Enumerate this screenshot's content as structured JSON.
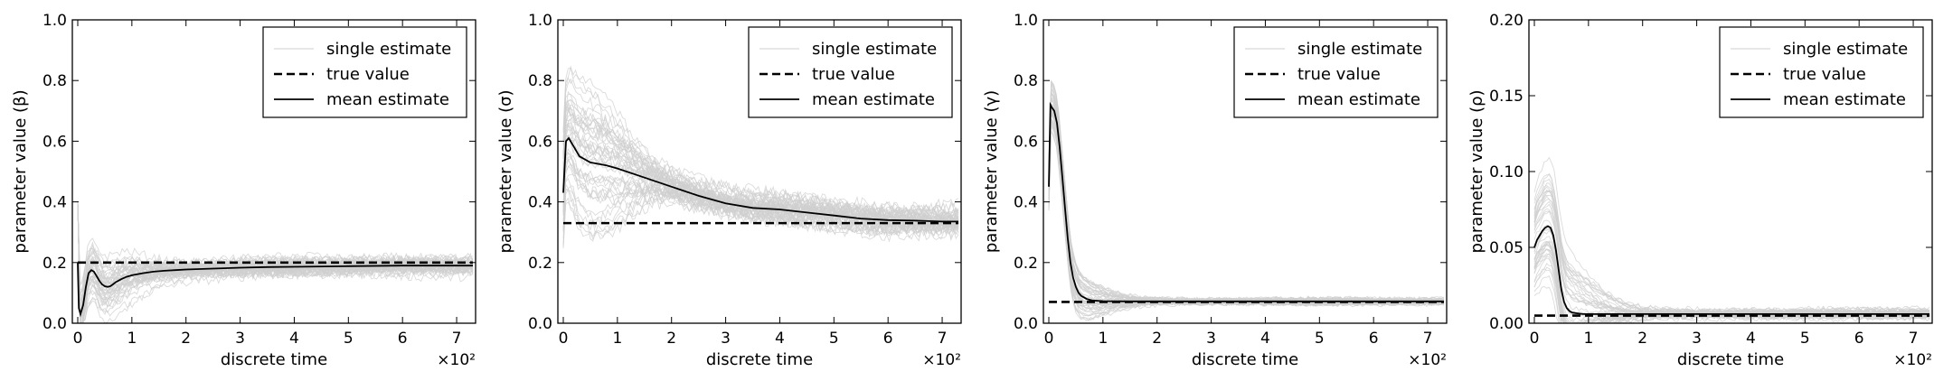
{
  "chart_data": [
    {
      "type": "line",
      "ylabel": "parameter value (β)",
      "xlabel": "discrete time",
      "x_multiplier": "×10²",
      "xlim": [
        -0.1,
        7.35
      ],
      "ylim": [
        0.0,
        1.0
      ],
      "xticks": [
        "0",
        "1",
        "2",
        "3",
        "4",
        "5",
        "6",
        "7"
      ],
      "yticks": [
        "0.0",
        "0.2",
        "0.4",
        "0.6",
        "0.8",
        "1.0"
      ],
      "legend": [
        "single estimate",
        "true value",
        "mean estimate"
      ],
      "legend_position": "top-right",
      "true_value": 0.2,
      "mean_x": [
        0,
        0.02,
        0.05,
        0.1,
        0.15,
        0.2,
        0.25,
        0.3,
        0.35,
        0.4,
        0.45,
        0.5,
        0.55,
        0.6,
        0.65,
        0.7,
        0.8,
        0.9,
        1.0,
        1.2,
        1.4,
        1.6,
        1.8,
        2.0,
        2.5,
        3.0,
        3.5,
        4.0,
        5.0,
        6.0,
        7.0,
        7.3
      ],
      "mean_y": [
        0.2,
        0.05,
        0.03,
        0.06,
        0.12,
        0.165,
        0.175,
        0.17,
        0.155,
        0.14,
        0.128,
        0.122,
        0.12,
        0.122,
        0.128,
        0.135,
        0.145,
        0.153,
        0.158,
        0.165,
        0.17,
        0.173,
        0.175,
        0.177,
        0.18,
        0.183,
        0.185,
        0.186,
        0.188,
        0.19,
        0.19,
        0.19
      ],
      "band": {
        "spike_y": 0.4,
        "spike_x": 0.0,
        "peak_x": 0.4,
        "peak_spread": 0.13,
        "end_spread": 0.03,
        "wavy": 0.015
      }
    },
    {
      "type": "line",
      "ylabel": "parameter value (σ)",
      "xlabel": "discrete time",
      "x_multiplier": "×10²",
      "xlim": [
        -0.1,
        7.35
      ],
      "ylim": [
        0.0,
        1.0
      ],
      "xticks": [
        "0",
        "1",
        "2",
        "3",
        "4",
        "5",
        "6",
        "7"
      ],
      "yticks": [
        "0.0",
        "0.2",
        "0.4",
        "0.6",
        "0.8",
        "1.0"
      ],
      "legend": [
        "single estimate",
        "true value",
        "mean estimate"
      ],
      "legend_position": "top-right",
      "true_value": 0.33,
      "mean_x": [
        0,
        0.05,
        0.1,
        0.2,
        0.3,
        0.5,
        0.8,
        1.0,
        1.5,
        2.0,
        2.5,
        3.0,
        3.5,
        4.0,
        4.5,
        5.0,
        5.5,
        6.0,
        6.5,
        7.0,
        7.3
      ],
      "mean_y": [
        0.43,
        0.6,
        0.61,
        0.58,
        0.55,
        0.53,
        0.52,
        0.51,
        0.48,
        0.45,
        0.42,
        0.395,
        0.38,
        0.375,
        0.365,
        0.355,
        0.345,
        0.34,
        0.338,
        0.335,
        0.335
      ],
      "band": {
        "spike_y": 0.0,
        "spike_x": 0.0,
        "peak_x": 0.5,
        "peak_spread": 0.28,
        "end_spread": 0.05,
        "wavy": 0.02
      }
    },
    {
      "type": "line",
      "ylabel": "parameter value (γ)",
      "xlabel": "discrete time",
      "x_multiplier": "×10²",
      "xlim": [
        -0.1,
        7.35
      ],
      "ylim": [
        0.0,
        1.0
      ],
      "xticks": [
        "0",
        "1",
        "2",
        "3",
        "4",
        "5",
        "6",
        "7"
      ],
      "yticks": [
        "0.0",
        "0.2",
        "0.4",
        "0.6",
        "0.8",
        "1.0"
      ],
      "legend": [
        "single estimate",
        "true value",
        "mean estimate"
      ],
      "legend_position": "top-right",
      "true_value": 0.07,
      "mean_x": [
        0,
        0.03,
        0.06,
        0.1,
        0.15,
        0.2,
        0.25,
        0.3,
        0.35,
        0.4,
        0.45,
        0.5,
        0.55,
        0.6,
        0.7,
        0.8,
        1.0,
        1.5,
        2.0,
        3.0,
        4.0,
        5.0,
        6.0,
        7.0,
        7.3
      ],
      "mean_y": [
        0.45,
        0.72,
        0.71,
        0.7,
        0.66,
        0.58,
        0.48,
        0.38,
        0.28,
        0.2,
        0.15,
        0.12,
        0.1,
        0.09,
        0.08,
        0.075,
        0.073,
        0.072,
        0.072,
        0.072,
        0.072,
        0.072,
        0.072,
        0.072,
        0.072
      ],
      "band": {
        "spike_y": 0.0,
        "spike_x": 0.0,
        "peak_x": 0.3,
        "peak_spread": 0.1,
        "end_spread": 0.012,
        "wavy": 0.006
      }
    },
    {
      "type": "line",
      "ylabel": "parameter value (ρ)",
      "xlabel": "discrete time",
      "x_multiplier": "×10²",
      "xlim": [
        -0.1,
        7.35
      ],
      "ylim": [
        0.0,
        0.2
      ],
      "xticks": [
        "0",
        "1",
        "2",
        "3",
        "4",
        "5",
        "6",
        "7"
      ],
      "yticks": [
        "0.00",
        "0.05",
        "0.10",
        "0.15",
        "0.20"
      ],
      "legend": [
        "single estimate",
        "true value",
        "mean estimate"
      ],
      "legend_position": "top-right",
      "true_value": 0.005,
      "mean_x": [
        0,
        0.05,
        0.1,
        0.15,
        0.2,
        0.25,
        0.3,
        0.35,
        0.4,
        0.45,
        0.5,
        0.55,
        0.6,
        0.65,
        0.7,
        0.8,
        0.9,
        1.0,
        1.5,
        2.0,
        3.0,
        4.0,
        5.0,
        6.0,
        7.0,
        7.3
      ],
      "mean_y": [
        0.05,
        0.055,
        0.058,
        0.061,
        0.063,
        0.064,
        0.063,
        0.058,
        0.048,
        0.035,
        0.022,
        0.014,
        0.01,
        0.008,
        0.007,
        0.0065,
        0.006,
        0.006,
        0.006,
        0.006,
        0.006,
        0.006,
        0.006,
        0.006,
        0.006,
        0.006
      ],
      "band": {
        "spike_y": 0.0,
        "spike_x": 0.0,
        "peak_x": 0.35,
        "peak_spread": 0.045,
        "end_spread": 0.003,
        "wavy": 0.0015
      }
    }
  ]
}
